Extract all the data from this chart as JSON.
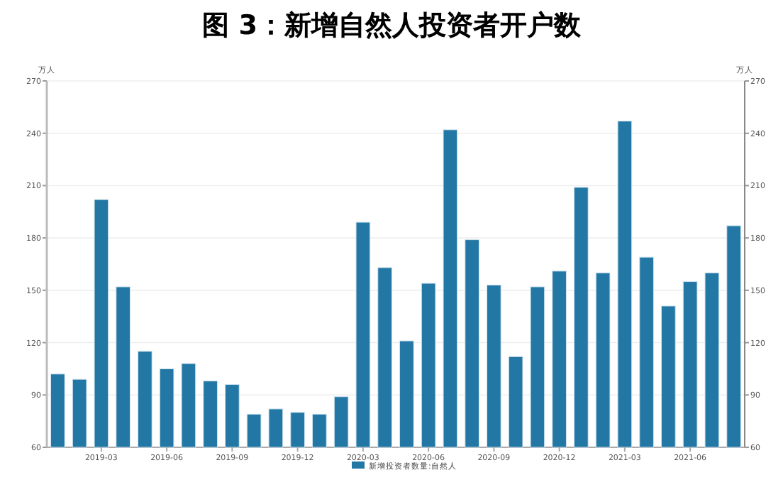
{
  "chart_data": {
    "type": "bar",
    "title": "图 3：新增自然人投资者开户数",
    "ylabel": "万人",
    "y2label": "万人",
    "categories": [
      null,
      null,
      "2019-03",
      null,
      null,
      "2019-06",
      null,
      null,
      "2019-09",
      null,
      null,
      "2019-12",
      null,
      null,
      "2020-03",
      null,
      null,
      "2020-06",
      null,
      null,
      "2020-09",
      null,
      null,
      "2020-12",
      null,
      null,
      "2021-03",
      null,
      null,
      "2021-06",
      null,
      null
    ],
    "series": [
      {
        "name": "新增投资者数量:自然人",
        "color": "#2277a4",
        "values": [
          102,
          99,
          202,
          152,
          115,
          105,
          108,
          98,
          96,
          79,
          82,
          80,
          79,
          89,
          189,
          163,
          121,
          154,
          242,
          179,
          153,
          112,
          152,
          161,
          209,
          160,
          247,
          169,
          141,
          155,
          160,
          187
        ]
      }
    ],
    "ylim": [
      60,
      270
    ],
    "yticks": [
      60,
      90,
      120,
      150,
      180,
      210,
      240,
      270
    ],
    "y2lim": [
      60,
      270
    ],
    "y2ticks": [
      60,
      90,
      120,
      150,
      180,
      210,
      240,
      270
    ],
    "grid": "y",
    "legend": "bottom"
  }
}
